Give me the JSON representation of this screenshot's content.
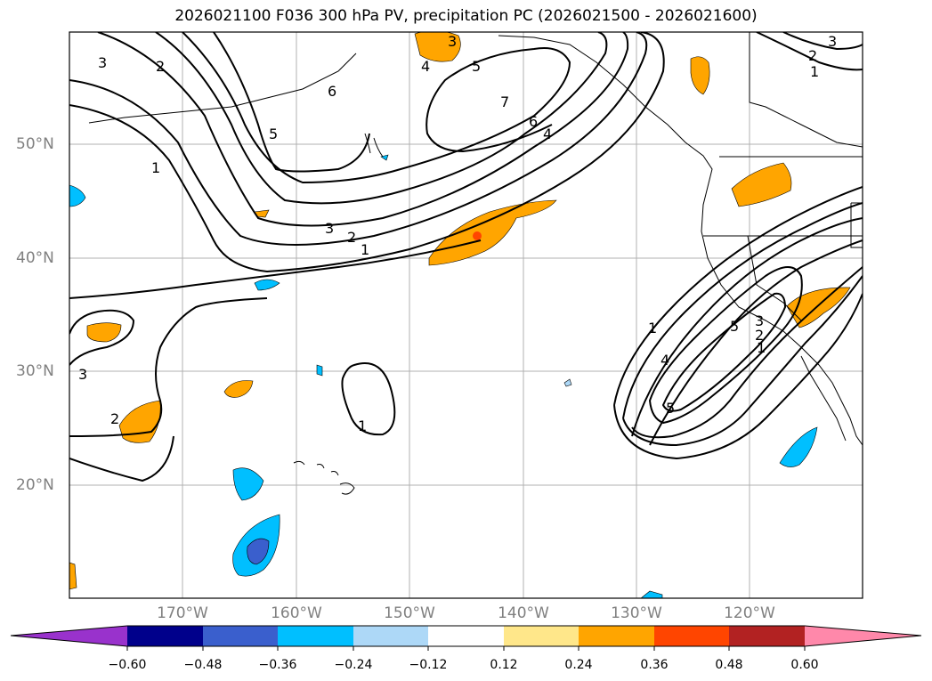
{
  "title": "2026021100 F036 300 hPa PV, precipitation PC (2026021500 - 2026021600)",
  "lat_ticks": [
    "50°N",
    "40°N",
    "30°N",
    "20°N"
  ],
  "lon_ticks": [
    "170°W",
    "160°W",
    "150°W",
    "140°W",
    "130°W",
    "120°W"
  ],
  "colorbar": {
    "labels": [
      "−0.60",
      "−0.48",
      "−0.36",
      "−0.24",
      "−0.12",
      "0.12",
      "0.24",
      "0.36",
      "0.48",
      "0.60"
    ],
    "colors": [
      "#9932cc",
      "#00008b",
      "#3a5fcd",
      "#00bfff",
      "#add8f7",
      "#ffffff",
      "#ffe78a",
      "#ffa500",
      "#ff4500",
      "#b22222",
      "#ff88aa"
    ]
  },
  "contour_labels": {
    "pv": [
      "3",
      "2",
      "6",
      "5",
      "1",
      "3",
      "2",
      "1",
      "3",
      "4",
      "5",
      "7",
      "6",
      "4",
      "3",
      "2",
      "1",
      "3",
      "2",
      "1",
      "1",
      "1",
      "4",
      "5",
      "5",
      "3",
      "2"
    ]
  },
  "colors": {
    "grid": "#b0b0b0",
    "contour": "#000000",
    "tick_text": "#808080"
  }
}
